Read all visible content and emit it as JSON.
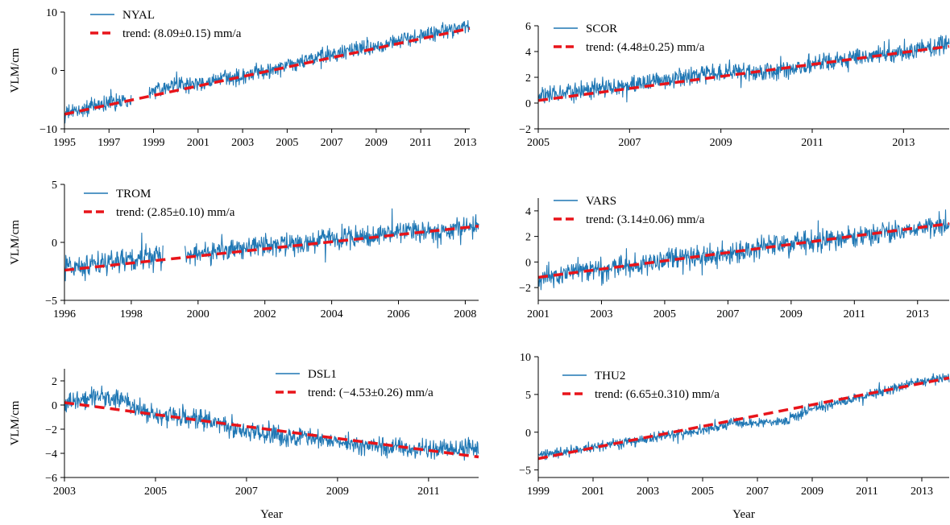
{
  "colors": {
    "series": "#1f77b4",
    "trend": "#e8141a",
    "axis": "#000000"
  },
  "chart_data": [
    {
      "type": "line",
      "station": "NYAL",
      "xlim": [
        1995,
        2013.2
      ],
      "ylim": [
        -10,
        10
      ],
      "xticks": [
        "1995",
        "1997",
        "1999",
        "2001",
        "2003",
        "2005",
        "2007",
        "2009",
        "2011",
        "2013"
      ],
      "yticks": [
        "10",
        "0",
        "−10"
      ],
      "ylabel": "VLM/cm",
      "xlabel": "",
      "legend": {
        "placement": "top-left",
        "series_label": "NYAL",
        "trend_label": "trend: (8.09±0.15) mm/a"
      },
      "series": [
        {
          "name": "NYAL",
          "x": [
            1995.0,
            1996.0,
            1997.0,
            1998.0,
            1999.0,
            2001.0,
            2003.0,
            2005.0,
            2007.0,
            2009.0,
            2011.0,
            2013.2
          ],
          "y": [
            -7.5,
            -6.5,
            -5.5,
            -5.0,
            -3.0,
            -2.3,
            -1.0,
            0.8,
            2.8,
            4.2,
            5.8,
            7.8
          ],
          "noise": 1.0
        },
        {
          "name": "trend",
          "x": [
            1995.0,
            2013.2
          ],
          "y": [
            -7.5,
            7.2
          ]
        }
      ],
      "gaps": [
        [
          1998.0,
          1998.8
        ]
      ]
    },
    {
      "type": "line",
      "station": "SCOR",
      "xlim": [
        2005,
        2014
      ],
      "ylim": [
        -2,
        6
      ],
      "xticks": [
        "2005",
        "2007",
        "2009",
        "2011",
        "2013"
      ],
      "yticks": [
        "6",
        "4",
        "2",
        "0",
        "−2"
      ],
      "ylabel": "",
      "xlabel": "",
      "legend": {
        "placement": "top-left",
        "series_label": "SCOR",
        "trend_label": "trend: (4.48±0.25) mm/a"
      },
      "series": [
        {
          "name": "SCOR",
          "x": [
            2005.0,
            2006.0,
            2007.0,
            2008.0,
            2009.0,
            2010.0,
            2011.0,
            2012.0,
            2013.0,
            2014.0
          ],
          "y": [
            0.4,
            1.0,
            1.4,
            1.9,
            2.4,
            2.4,
            3.0,
            3.6,
            3.9,
            4.8
          ],
          "noise": 0.55
        },
        {
          "name": "trend",
          "x": [
            2005.0,
            2014.0
          ],
          "y": [
            0.2,
            4.4
          ]
        }
      ],
      "gaps": []
    },
    {
      "type": "line",
      "station": "TROM",
      "xlim": [
        1996,
        2008.4
      ],
      "ylim": [
        -5,
        5
      ],
      "xticks": [
        "1996",
        "1998",
        "2000",
        "2002",
        "2004",
        "2006",
        "2008"
      ],
      "yticks": [
        "5",
        "0",
        "−5"
      ],
      "ylabel": "VLM/cm",
      "xlabel": "",
      "legend": {
        "placement": "top-left",
        "series_label": "TROM",
        "trend_label": "trend: (2.85±0.10) mm/a"
      },
      "series": [
        {
          "name": "TROM",
          "x": [
            1996.0,
            1997.0,
            1998.0,
            1999.0,
            2000.0,
            2001.0,
            2002.0,
            2003.0,
            2004.0,
            2005.0,
            2006.0,
            2007.0,
            2008.0,
            2008.4
          ],
          "y": [
            -2.2,
            -1.8,
            -1.6,
            -1.2,
            -1.0,
            -0.6,
            -0.3,
            -0.1,
            0.3,
            0.5,
            0.8,
            1.0,
            1.3,
            1.5
          ],
          "noise": 0.7
        },
        {
          "name": "trend",
          "x": [
            1996.0,
            2008.4
          ],
          "y": [
            -2.4,
            1.4
          ]
        }
      ],
      "gaps": [
        [
          1998.95,
          1999.6
        ]
      ]
    },
    {
      "type": "line",
      "station": "VARS",
      "xlim": [
        2001,
        2014
      ],
      "ylim": [
        -3,
        5
      ],
      "xticks": [
        "2001",
        "2003",
        "2005",
        "2007",
        "2009",
        "2011",
        "2013"
      ],
      "yticks": [
        "4",
        "2",
        "0",
        "−2"
      ],
      "ylabel": "",
      "xlabel": "",
      "legend": {
        "placement": "top-left",
        "series_label": "VARS",
        "trend_label": "trend: (3.14±0.06) mm/a"
      },
      "series": [
        {
          "name": "VARS",
          "x": [
            2001.0,
            2003.0,
            2005.0,
            2007.0,
            2009.0,
            2011.0,
            2013.0,
            2014.0
          ],
          "y": [
            -1.2,
            -0.6,
            0.1,
            0.7,
            1.4,
            2.0,
            2.6,
            3.0
          ],
          "noise": 0.65
        },
        {
          "name": "trend",
          "x": [
            2001.0,
            2014.0
          ],
          "y": [
            -1.2,
            3.0
          ]
        }
      ],
      "gaps": []
    },
    {
      "type": "line",
      "station": "DSL1",
      "xlim": [
        2003,
        2012.1
      ],
      "ylim": [
        -6,
        3
      ],
      "xticks": [
        "2003",
        "2005",
        "2007",
        "2009",
        "2011"
      ],
      "yticks": [
        "2",
        "0",
        "−2",
        "−4",
        "−6"
      ],
      "ylabel": "VLM/cm",
      "xlabel": "Year",
      "legend": {
        "placement": "top-right",
        "series_label": "DSL1",
        "trend_label": "trend: (−4.53±0.26) mm/a"
      },
      "series": [
        {
          "name": "DSL1",
          "x": [
            2003.0,
            2003.8,
            2004.5,
            2005.0,
            2006.0,
            2007.0,
            2008.0,
            2009.0,
            2010.0,
            2011.0,
            2012.1
          ],
          "y": [
            0.2,
            0.8,
            0.0,
            -0.8,
            -1.2,
            -2.2,
            -2.6,
            -3.0,
            -3.5,
            -3.6,
            -3.6
          ],
          "noise": 0.6
        },
        {
          "name": "trend",
          "x": [
            2003.0,
            2012.1
          ],
          "y": [
            0.2,
            -4.3
          ]
        }
      ],
      "gaps": []
    },
    {
      "type": "line",
      "station": "THU2",
      "xlim": [
        1999,
        2014
      ],
      "ylim": [
        -6,
        10
      ],
      "xticks": [
        "1999",
        "2001",
        "2003",
        "2005",
        "2007",
        "2009",
        "2011",
        "2013"
      ],
      "yticks": [
        "10",
        "5",
        "0",
        "−5"
      ],
      "ylabel": "",
      "xlabel": "Year",
      "legend": {
        "placement": "top-left",
        "series_label": "THU2",
        "trend_label": "trend: (6.65±0.310) mm/a"
      },
      "series": [
        {
          "name": "THU2",
          "x": [
            1999.0,
            2000.0,
            2001.0,
            2002.0,
            2003.0,
            2004.0,
            2005.0,
            2006.0,
            2007.0,
            2008.0,
            2009.0,
            2010.0,
            2011.0,
            2012.0,
            2013.0,
            2014.0
          ],
          "y": [
            -3.0,
            -2.6,
            -2.0,
            -1.5,
            -0.8,
            -0.3,
            0.2,
            1.2,
            1.2,
            1.5,
            3.2,
            4.0,
            4.8,
            5.8,
            6.8,
            7.2
          ],
          "noise": 0.5
        },
        {
          "name": "trend",
          "x": [
            1999.0,
            2014.0
          ],
          "y": [
            -3.5,
            7.2
          ]
        }
      ],
      "gaps": []
    }
  ]
}
